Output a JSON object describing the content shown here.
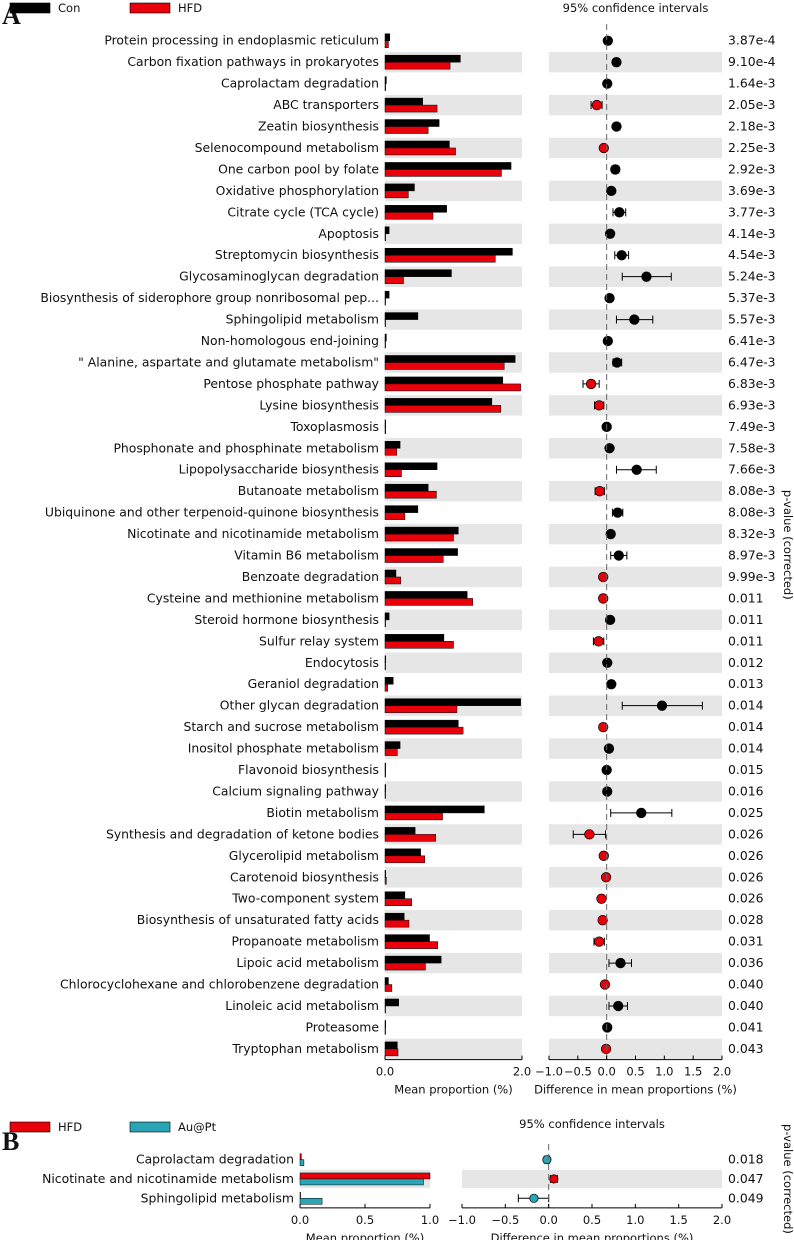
{
  "chart_data": [
    {
      "panel": "A",
      "type": "extended_error_bar",
      "legend": [
        {
          "name": "Con",
          "color": "#000000"
        },
        {
          "name": "HFD",
          "color": "#e8000b"
        }
      ],
      "ci_title": "95% confidence intervals",
      "xlabel_left": "Mean proportion (%)",
      "xlabel_right": "Difference in mean proportions (%)",
      "ylabel_right": "p-value (corrected)",
      "left_xlim": [
        0,
        2.0
      ],
      "left_ticks": [
        "0.0",
        "2.0"
      ],
      "right_xlim": [
        -1.0,
        2.0
      ],
      "right_ticks": [
        "−1.0",
        "−0.5",
        "0.0",
        "0.5",
        "1.0",
        "1.5",
        "2.0"
      ],
      "right_tick_values": [
        -1.0,
        -0.5,
        0.0,
        0.5,
        1.0,
        1.5,
        2.0
      ],
      "rows": [
        {
          "name": "Protein processing in endoplasmic reticulum",
          "a": 0.07,
          "b": 0.05,
          "diff": 0.02,
          "lo": 0.0,
          "hi": 0.04,
          "p": "3.87e-4"
        },
        {
          "name": "Carbon fixation pathways in prokaryotes",
          "a": 1.1,
          "b": 0.95,
          "diff": 0.17,
          "lo": 0.12,
          "hi": 0.22,
          "p": "9.10e-4"
        },
        {
          "name": "Caprolactam degradation",
          "a": 0.02,
          "b": 0.01,
          "diff": 0.01,
          "lo": -0.02,
          "hi": 0.04,
          "p": "1.64e-3"
        },
        {
          "name": "ABC transporters",
          "a": 0.55,
          "b": 0.76,
          "diff": -0.17,
          "lo": -0.27,
          "hi": -0.08,
          "p": "2.05e-3"
        },
        {
          "name": "Zeatin biosynthesis",
          "a": 0.79,
          "b": 0.63,
          "diff": 0.17,
          "lo": 0.12,
          "hi": 0.23,
          "p": "2.18e-3"
        },
        {
          "name": "Selenocompound metabolism",
          "a": 0.94,
          "b": 1.03,
          "diff": -0.05,
          "lo": -0.09,
          "hi": -0.01,
          "p": "2.25e-3"
        },
        {
          "name": "One carbon pool by folate",
          "a": 1.84,
          "b": 1.7,
          "diff": 0.15,
          "lo": 0.09,
          "hi": 0.21,
          "p": "2.92e-3"
        },
        {
          "name": "Oxidative phosphorylation",
          "a": 0.43,
          "b": 0.34,
          "diff": 0.08,
          "lo": 0.04,
          "hi": 0.12,
          "p": "3.69e-3"
        },
        {
          "name": "Citrate cycle (TCA cycle)",
          "a": 0.9,
          "b": 0.7,
          "diff": 0.22,
          "lo": 0.11,
          "hi": 0.33,
          "p": "3.77e-3"
        },
        {
          "name": "Apoptosis",
          "a": 0.06,
          "b": 0.01,
          "diff": 0.06,
          "lo": 0.01,
          "hi": 0.11,
          "p": "4.14e-3"
        },
        {
          "name": "Streptomycin biosynthesis",
          "a": 1.86,
          "b": 1.61,
          "diff": 0.26,
          "lo": 0.14,
          "hi": 0.38,
          "p": "4.54e-3"
        },
        {
          "name": "Glycosaminoglycan degradation",
          "a": 0.97,
          "b": 0.27,
          "diff": 0.69,
          "lo": 0.27,
          "hi": 1.12,
          "p": "5.24e-3"
        },
        {
          "name": "Biosynthesis of siderophore group nonribosomal pep...",
          "a": 0.06,
          "b": 0.0,
          "diff": 0.05,
          "lo": 0.01,
          "hi": 0.09,
          "p": "5.37e-3"
        },
        {
          "name": "Sphingolipid metabolism",
          "a": 0.48,
          "b": 0.0,
          "diff": 0.48,
          "lo": 0.17,
          "hi": 0.8,
          "p": "5.57e-3"
        },
        {
          "name": "Non-homologous end-joining",
          "a": 0.02,
          "b": 0.0,
          "diff": 0.02,
          "lo": -0.01,
          "hi": 0.05,
          "p": "6.41e-3"
        },
        {
          "name": "\" Alanine, aspartate and glutamate metabolism\"",
          "a": 1.9,
          "b": 1.74,
          "diff": 0.18,
          "lo": 0.11,
          "hi": 0.26,
          "p": "6.47e-3"
        },
        {
          "name": "Pentose phosphate pathway",
          "a": 1.72,
          "b": 1.98,
          "diff": -0.27,
          "lo": -0.41,
          "hi": -0.13,
          "p": "6.83e-3"
        },
        {
          "name": "Lysine biosynthesis",
          "a": 1.56,
          "b": 1.69,
          "diff": -0.13,
          "lo": -0.21,
          "hi": -0.05,
          "p": "6.93e-3"
        },
        {
          "name": "Toxoplasmosis",
          "a": 0.01,
          "b": 0.01,
          "diff": 0.0,
          "lo": -0.03,
          "hi": 0.03,
          "p": "7.49e-3"
        },
        {
          "name": "Phosphonate and phosphinate metabolism",
          "a": 0.22,
          "b": 0.17,
          "diff": 0.05,
          "lo": 0.02,
          "hi": 0.08,
          "p": "7.58e-3"
        },
        {
          "name": "Lipopolysaccharide biosynthesis",
          "a": 0.76,
          "b": 0.24,
          "diff": 0.52,
          "lo": 0.17,
          "hi": 0.86,
          "p": "7.66e-3"
        },
        {
          "name": "Butanoate metabolism",
          "a": 0.63,
          "b": 0.75,
          "diff": -0.12,
          "lo": -0.2,
          "hi": -0.04,
          "p": "8.08e-3"
        },
        {
          "name": "Ubiquinone and other terpenoid-quinone biosynthesis",
          "a": 0.48,
          "b": 0.29,
          "diff": 0.19,
          "lo": 0.1,
          "hi": 0.28,
          "p": "8.08e-3"
        },
        {
          "name": "Nicotinate and nicotinamide metabolism",
          "a": 1.07,
          "b": 1.0,
          "diff": 0.07,
          "lo": 0.03,
          "hi": 0.11,
          "p": "8.32e-3"
        },
        {
          "name": "Vitamin B6 metabolism",
          "a": 1.06,
          "b": 0.85,
          "diff": 0.21,
          "lo": 0.07,
          "hi": 0.35,
          "p": "8.97e-3"
        },
        {
          "name": "Benzoate degradation",
          "a": 0.16,
          "b": 0.23,
          "diff": -0.06,
          "lo": -0.11,
          "hi": -0.02,
          "p": "9.99e-3"
        },
        {
          "name": "Cysteine and methionine metabolism",
          "a": 1.2,
          "b": 1.28,
          "diff": -0.06,
          "lo": -0.11,
          "hi": -0.01,
          "p": "0.011"
        },
        {
          "name": "Steroid hormone biosynthesis",
          "a": 0.06,
          "b": 0.0,
          "diff": 0.06,
          "lo": 0.02,
          "hi": 0.1,
          "p": "0.011"
        },
        {
          "name": "Sulfur relay system",
          "a": 0.86,
          "b": 1.0,
          "diff": -0.14,
          "lo": -0.23,
          "hi": -0.05,
          "p": "0.011"
        },
        {
          "name": "Endocytosis",
          "a": 0.01,
          "b": 0.0,
          "diff": 0.01,
          "lo": -0.02,
          "hi": 0.04,
          "p": "0.012"
        },
        {
          "name": "Geraniol degradation",
          "a": 0.12,
          "b": 0.04,
          "diff": 0.08,
          "lo": 0.03,
          "hi": 0.13,
          "p": "0.013"
        },
        {
          "name": "Other glycan degradation",
          "a": 1.98,
          "b": 1.05,
          "diff": 0.96,
          "lo": 0.27,
          "hi": 1.66,
          "p": "0.014"
        },
        {
          "name": "Starch and sucrose metabolism",
          "a": 1.07,
          "b": 1.14,
          "diff": -0.06,
          "lo": -0.11,
          "hi": -0.01,
          "p": "0.014"
        },
        {
          "name": "Inositol phosphate metabolism",
          "a": 0.22,
          "b": 0.18,
          "diff": 0.04,
          "lo": 0.01,
          "hi": 0.07,
          "p": "0.014"
        },
        {
          "name": "Flavonoid biosynthesis",
          "a": 0.01,
          "b": 0.01,
          "diff": 0.0,
          "lo": -0.03,
          "hi": 0.03,
          "p": "0.015"
        },
        {
          "name": "Calcium signaling pathway",
          "a": 0.01,
          "b": 0.0,
          "diff": 0.01,
          "lo": -0.02,
          "hi": 0.04,
          "p": "0.016"
        },
        {
          "name": "Biotin metabolism",
          "a": 1.45,
          "b": 0.84,
          "diff": 0.6,
          "lo": 0.07,
          "hi": 1.13,
          "p": "0.025"
        },
        {
          "name": "Synthesis and degradation of ketone bodies",
          "a": 0.44,
          "b": 0.74,
          "diff": -0.3,
          "lo": -0.58,
          "hi": -0.02,
          "p": "0.026"
        },
        {
          "name": "Glycerolipid metabolism",
          "a": 0.52,
          "b": 0.58,
          "diff": -0.05,
          "lo": -0.1,
          "hi": 0.0,
          "p": "0.026"
        },
        {
          "name": "Carotenoid biosynthesis",
          "a": 0.01,
          "b": 0.02,
          "diff": -0.01,
          "lo": -0.03,
          "hi": 0.02,
          "p": "0.026"
        },
        {
          "name": "Two-component system",
          "a": 0.29,
          "b": 0.39,
          "diff": -0.09,
          "lo": -0.14,
          "hi": -0.04,
          "p": "0.026"
        },
        {
          "name": "Biosynthesis of unsaturated fatty acids",
          "a": 0.28,
          "b": 0.35,
          "diff": -0.07,
          "lo": -0.11,
          "hi": -0.02,
          "p": "0.028"
        },
        {
          "name": "Propanoate metabolism",
          "a": 0.65,
          "b": 0.77,
          "diff": -0.13,
          "lo": -0.22,
          "hi": -0.04,
          "p": "0.031"
        },
        {
          "name": "Lipoic acid metabolism",
          "a": 0.82,
          "b": 0.59,
          "diff": 0.24,
          "lo": 0.04,
          "hi": 0.43,
          "p": "0.036"
        },
        {
          "name": "Chlorocyclohexane and chlorobenzene degradation",
          "a": 0.05,
          "b": 0.1,
          "diff": -0.03,
          "lo": -0.06,
          "hi": 0.0,
          "p": "0.040"
        },
        {
          "name": "Linoleic acid metabolism",
          "a": 0.2,
          "b": 0.0,
          "diff": 0.2,
          "lo": 0.04,
          "hi": 0.36,
          "p": "0.040"
        },
        {
          "name": "Proteasome",
          "a": 0.01,
          "b": 0.0,
          "diff": 0.01,
          "lo": -0.02,
          "hi": 0.04,
          "p": "0.041"
        },
        {
          "name": "Tryptophan metabolism",
          "a": 0.18,
          "b": 0.19,
          "diff": -0.01,
          "lo": -0.04,
          "hi": 0.02,
          "p": "0.043"
        }
      ]
    },
    {
      "panel": "B",
      "type": "extended_error_bar",
      "legend": [
        {
          "name": "HFD",
          "color": "#e8000b"
        },
        {
          "name": "Au@Pt",
          "color": "#2aa5b5"
        }
      ],
      "ci_title": "95% confidence intervals",
      "xlabel_left": "Mean proportion (%)",
      "xlabel_right": "Difference in mean proportions (%)",
      "ylabel_right": "p-value (corrected)",
      "left_xlim": [
        0,
        1.0
      ],
      "left_ticks": [
        "0.0",
        "0.5",
        "1.0"
      ],
      "right_xlim": [
        -1.0,
        2.0
      ],
      "right_ticks": [
        "−1.0",
        "−0.5",
        "0.0",
        "0.5",
        "1.0",
        "1.5",
        "2.0"
      ],
      "right_tick_values": [
        -1.0,
        -0.5,
        0.0,
        0.5,
        1.0,
        1.5,
        2.0
      ],
      "rows": [
        {
          "name": "Caprolactam degradation",
          "a": 0.01,
          "b": 0.03,
          "diff": -0.02,
          "lo": -0.05,
          "hi": 0.01,
          "p": "0.018"
        },
        {
          "name": "Nicotinate and nicotinamide metabolism",
          "a": 1.0,
          "b": 0.95,
          "diff": 0.06,
          "lo": 0.02,
          "hi": 0.1,
          "p": "0.047"
        },
        {
          "name": "Sphingolipid metabolism",
          "a": 0.0,
          "b": 0.17,
          "diff": -0.17,
          "lo": -0.35,
          "hi": 0.0,
          "p": "0.049"
        }
      ]
    }
  ]
}
